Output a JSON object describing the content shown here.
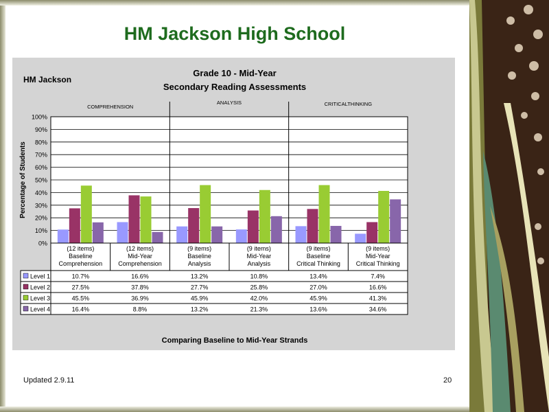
{
  "slide": {
    "title": "HM Jackson High School",
    "updated": "Updated  2.9.11",
    "page_number": "20"
  },
  "chart_data": {
    "type": "bar",
    "corner_label": "HM Jackson",
    "title_line1": "Grade 10 - Mid-Year",
    "title_line2": "Secondary Reading Assessments",
    "group_labels": [
      "COMPREHENSION",
      "ANALYSIS",
      "CRITICALTHINKING"
    ],
    "categories": [
      [
        "(12 items)",
        "Baseline",
        "Comprehension"
      ],
      [
        "(12 items)",
        "Mid-Year",
        "Comprehension"
      ],
      [
        "(9 items)",
        "Baseline",
        "Analysis"
      ],
      [
        "(9 items)",
        "Mid-Year",
        "Analysis"
      ],
      [
        "(9 items)",
        "Baseline",
        "Critical Thinking"
      ],
      [
        "(9 items)",
        "Mid-Year",
        "Critical Thinking"
      ]
    ],
    "series": [
      {
        "name": "Level 1",
        "color": "#9999ff",
        "values": [
          10.7,
          16.6,
          13.2,
          10.8,
          13.4,
          7.4
        ],
        "labels": [
          "10.7%",
          "16.6%",
          "13.2%",
          "10.8%",
          "13.4%",
          "7.4%"
        ]
      },
      {
        "name": "Level 2",
        "color": "#993366",
        "values": [
          27.5,
          37.8,
          27.7,
          25.8,
          27.0,
          16.6
        ],
        "labels": [
          "27.5%",
          "37.8%",
          "27.7%",
          "25.8%",
          "27.0%",
          "16.6%"
        ]
      },
      {
        "name": "Level 3",
        "color": "#99cc33",
        "values": [
          45.5,
          36.9,
          45.9,
          42.0,
          45.9,
          41.3
        ],
        "labels": [
          "45.5%",
          "36.9%",
          "45.9%",
          "42.0%",
          "45.9%",
          "41.3%"
        ]
      },
      {
        "name": "Level 4",
        "color": "#8866aa",
        "values": [
          16.4,
          8.8,
          13.2,
          21.3,
          13.6,
          34.6
        ],
        "labels": [
          "16.4%",
          "8.8%",
          "13.2%",
          "21.3%",
          "13.6%",
          "34.6%"
        ]
      }
    ],
    "ylabel": "Percentage of Students",
    "xlabel": "Comparing Baseline to Mid-Year Strands",
    "y_ticks": [
      "0%",
      "10%",
      "20%",
      "30%",
      "40%",
      "50%",
      "60%",
      "70%",
      "80%",
      "90%",
      "100%"
    ],
    "ylim": [
      0,
      100
    ],
    "grid": true,
    "legend": "data-table-left"
  }
}
